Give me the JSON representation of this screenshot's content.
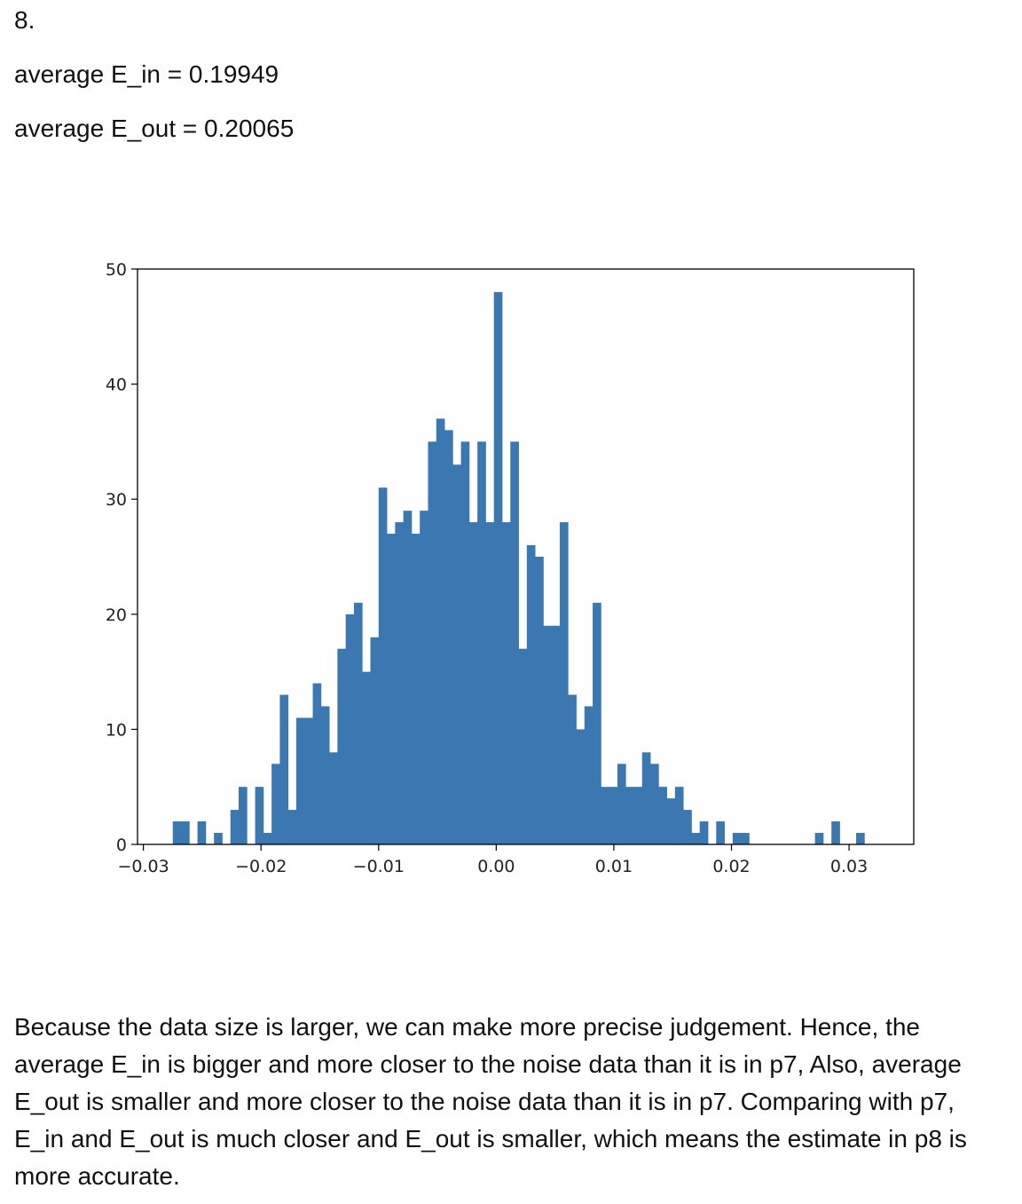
{
  "heading": "8.",
  "stats": {
    "ein_label": "average E_in = 0.19949",
    "eout_label": "average E_out = 0.20065"
  },
  "chart_data": {
    "type": "bar",
    "subtype": "histogram",
    "bar_color": "#3b77b0",
    "bin_start": -0.0275,
    "bin_width": 0.0007,
    "values": [
      2,
      2,
      0,
      2,
      0,
      1,
      0,
      3,
      5,
      0,
      5,
      1,
      7,
      13,
      3,
      11,
      11,
      14,
      12,
      8,
      17,
      20,
      21,
      15,
      18,
      31,
      27,
      28,
      29,
      27,
      29,
      35,
      37,
      36,
      33,
      35,
      28,
      35,
      28,
      48,
      28,
      35,
      17,
      26,
      25,
      19,
      19,
      28,
      13,
      10,
      12,
      21,
      5,
      5,
      7,
      5,
      5,
      8,
      7,
      5,
      4,
      5,
      3,
      1,
      2,
      0,
      2,
      0,
      1,
      1,
      0,
      0,
      0,
      0,
      0,
      0,
      0,
      0,
      1,
      0,
      2,
      0,
      0,
      1
    ],
    "xlim": [
      -0.0305,
      0.0355
    ],
    "ylim": [
      0,
      50
    ],
    "xticks": [
      -0.03,
      -0.02,
      -0.01,
      0.0,
      0.01,
      0.02,
      0.03
    ],
    "xtick_labels": [
      "−0.03",
      "−0.02",
      "−0.01",
      "0.00",
      "0.01",
      "0.02",
      "0.03"
    ],
    "yticks": [
      0,
      10,
      20,
      30,
      40,
      50
    ],
    "ytick_labels": [
      "0",
      "10",
      "20",
      "30",
      "40",
      "50"
    ],
    "title": "",
    "xlabel": "",
    "ylabel": ""
  },
  "paragraph": "Because the data size is larger, we can make more precise judgement. Hence, the average E_in is bigger and more closer to the noise data than it is in p7, Also, average E_out is smaller and more closer to the noise data than it is in p7. Comparing with p7, E_in and E_out is much closer and E_out is smaller, which means the estimate in p8 is more accurate."
}
